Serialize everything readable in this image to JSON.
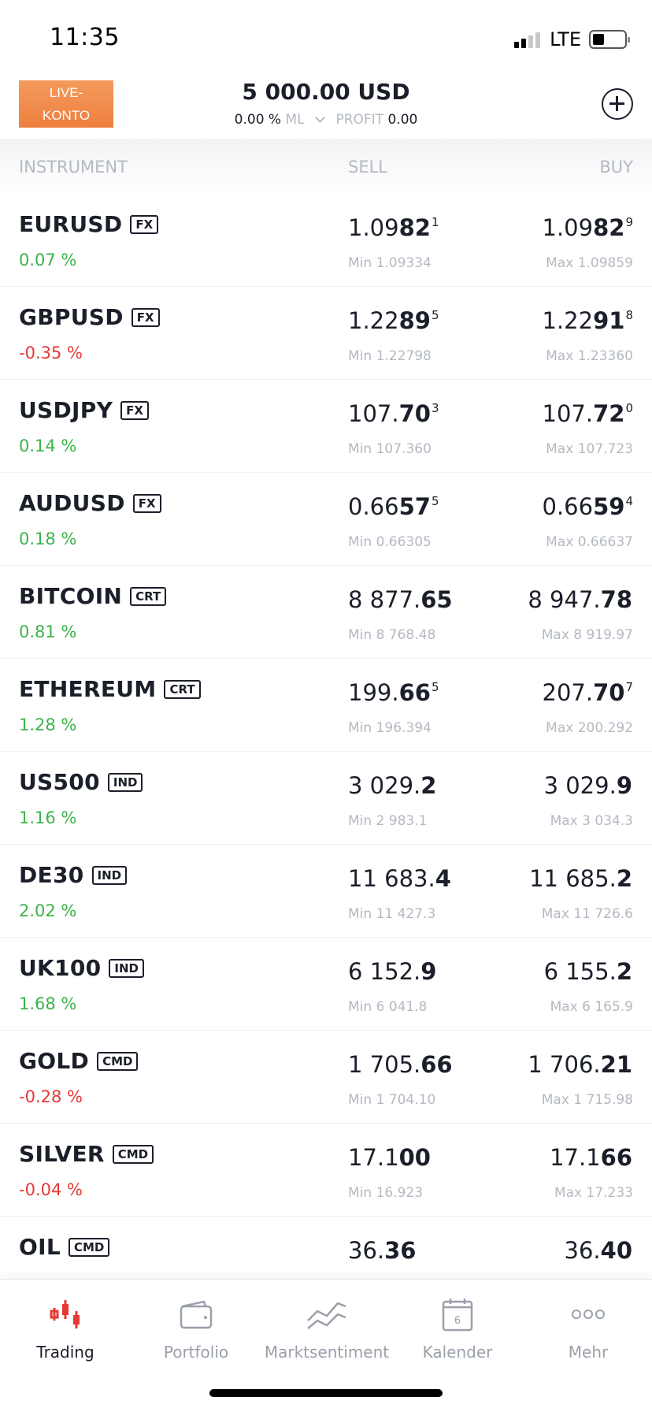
{
  "status": {
    "time": "11:35",
    "network": "LTE"
  },
  "header": {
    "live_line1": "LIVE-",
    "live_line2": "KONTO",
    "balance": "5 000.00 USD",
    "margin_value": "0.00 %",
    "margin_label": "ML",
    "profit_label": "PROFIT",
    "profit_value": "0.00"
  },
  "columns": {
    "instrument": "INSTRUMENT",
    "sell": "SELL",
    "buy": "BUY"
  },
  "colors": {
    "up": "#3cb34a",
    "down": "#e53935",
    "accent": "#ee8040",
    "active_tab": "#e53935"
  },
  "instruments": [
    {
      "name": "EURUSD",
      "tag": "FX",
      "change": "0.07 %",
      "dir": "up",
      "sell": {
        "a": "1.09",
        "b": "82",
        "sup": "1"
      },
      "buy": {
        "a": "1.09",
        "b": "82",
        "sup": "9"
      },
      "min": "Min 1.09334",
      "max": "Max 1.09859"
    },
    {
      "name": "GBPUSD",
      "tag": "FX",
      "change": "-0.35 %",
      "dir": "down",
      "sell": {
        "a": "1.22",
        "b": "89",
        "sup": "5"
      },
      "buy": {
        "a": "1.22",
        "b": "91",
        "sup": "8"
      },
      "min": "Min 1.22798",
      "max": "Max 1.23360"
    },
    {
      "name": "USDJPY",
      "tag": "FX",
      "change": "0.14 %",
      "dir": "up",
      "sell": {
        "a": "107.",
        "b": "70",
        "sup": "3"
      },
      "buy": {
        "a": "107.",
        "b": "72",
        "sup": "0"
      },
      "min": "Min 107.360",
      "max": "Max 107.723"
    },
    {
      "name": "AUDUSD",
      "tag": "FX",
      "change": "0.18 %",
      "dir": "up",
      "sell": {
        "a": "0.66",
        "b": "57",
        "sup": "5"
      },
      "buy": {
        "a": "0.66",
        "b": "59",
        "sup": "4"
      },
      "min": "Min 0.66305",
      "max": "Max 0.66637"
    },
    {
      "name": "BITCOIN",
      "tag": "CRT",
      "change": "0.81 %",
      "dir": "up",
      "sell": {
        "a": "8 877.",
        "b": "65",
        "sup": ""
      },
      "buy": {
        "a": "8 947.",
        "b": "78",
        "sup": ""
      },
      "min": "Min 8 768.48",
      "max": "Max 8 919.97"
    },
    {
      "name": "ETHEREUM",
      "tag": "CRT",
      "change": "1.28 %",
      "dir": "up",
      "sell": {
        "a": "199.",
        "b": "66",
        "sup": "5"
      },
      "buy": {
        "a": "207.",
        "b": "70",
        "sup": "7"
      },
      "min": "Min 196.394",
      "max": "Max 200.292"
    },
    {
      "name": "US500",
      "tag": "IND",
      "change": "1.16 %",
      "dir": "up",
      "sell": {
        "a": "3 029.",
        "b": "2",
        "sup": ""
      },
      "buy": {
        "a": "3 029.",
        "b": "9",
        "sup": ""
      },
      "min": "Min 2 983.1",
      "max": "Max 3 034.3"
    },
    {
      "name": "DE30",
      "tag": "IND",
      "change": "2.02 %",
      "dir": "up",
      "sell": {
        "a": "11 683.",
        "b": "4",
        "sup": ""
      },
      "buy": {
        "a": "11 685.",
        "b": "2",
        "sup": ""
      },
      "min": "Min 11 427.3",
      "max": "Max 11 726.6"
    },
    {
      "name": "UK100",
      "tag": "IND",
      "change": "1.68 %",
      "dir": "up",
      "sell": {
        "a": "6 152.",
        "b": "9",
        "sup": ""
      },
      "buy": {
        "a": "6 155.",
        "b": "2",
        "sup": ""
      },
      "min": "Min 6 041.8",
      "max": "Max 6 165.9"
    },
    {
      "name": "GOLD",
      "tag": "CMD",
      "change": "-0.28 %",
      "dir": "down",
      "sell": {
        "a": "1 705.",
        "b": "66",
        "sup": ""
      },
      "buy": {
        "a": "1 706.",
        "b": "21",
        "sup": ""
      },
      "min": "Min 1 704.10",
      "max": "Max 1 715.98"
    },
    {
      "name": "SILVER",
      "tag": "CMD",
      "change": "-0.04 %",
      "dir": "down",
      "sell": {
        "a": "17.1",
        "b": "00",
        "sup": ""
      },
      "buy": {
        "a": "17.1",
        "b": "66",
        "sup": ""
      },
      "min": "Min 16.923",
      "max": "Max 17.233"
    },
    {
      "name": "OIL",
      "tag": "CMD",
      "change": "",
      "dir": "down",
      "sell": {
        "a": "36.",
        "b": "36",
        "sup": ""
      },
      "buy": {
        "a": "36.",
        "b": "40",
        "sup": ""
      },
      "min": "",
      "max": ""
    }
  ],
  "tabs": [
    {
      "label": "Trading",
      "icon": "candlestick-icon",
      "active": true
    },
    {
      "label": "Portfolio",
      "icon": "wallet-icon",
      "active": false
    },
    {
      "label": "Marktsentiment",
      "icon": "trend-lines-icon",
      "active": false
    },
    {
      "label": "Kalender",
      "icon": "calendar-icon",
      "active": false,
      "badge": "6"
    },
    {
      "label": "Mehr",
      "icon": "more-dots-icon",
      "active": false
    }
  ]
}
